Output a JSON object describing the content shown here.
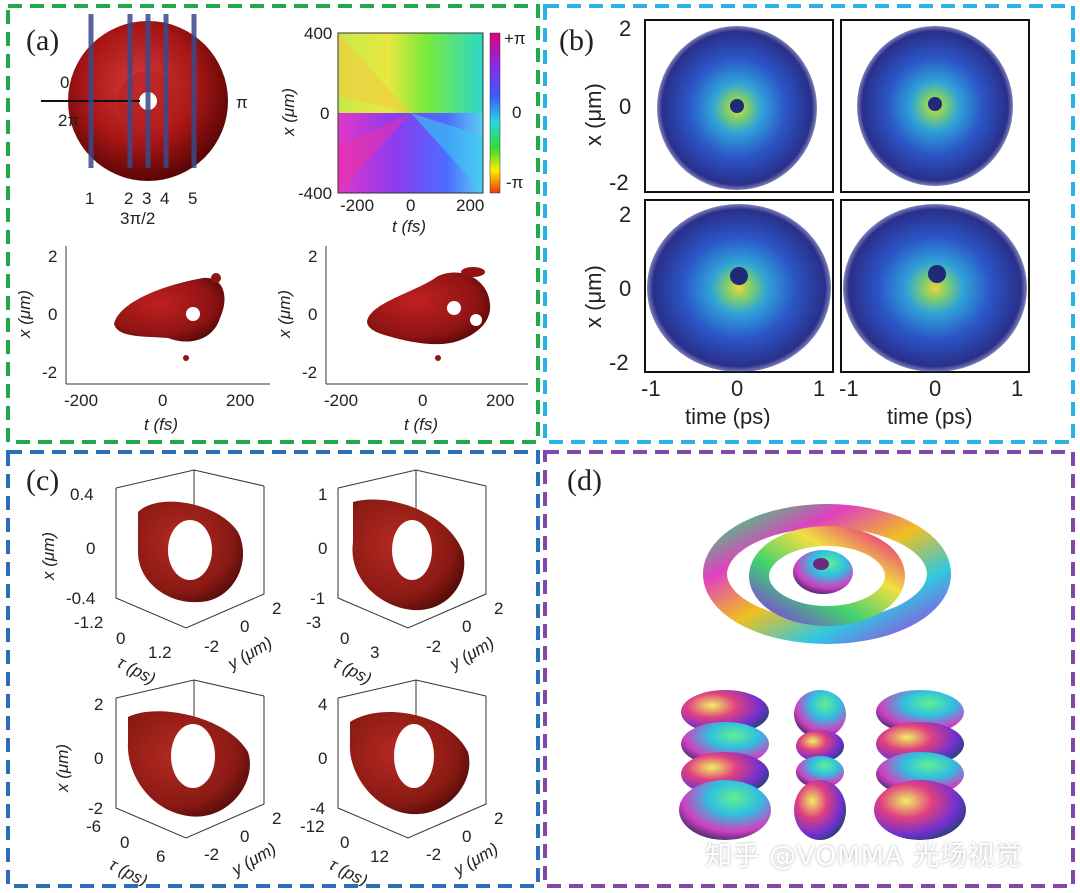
{
  "colors": {
    "panel_a": "#22aa4a",
    "panel_b": "#2ab1e6",
    "panel_c": "#2a6fb7",
    "panel_d": "#8248a8",
    "surface": "#8f1414",
    "field_dark": "#2a2f8a"
  },
  "panel_a": {
    "label": "(a)",
    "torus": {
      "phase_left_top": "0",
      "phase_left_bottom": "2π",
      "phase_right": "π",
      "phase_bottom": "3π/2",
      "slices": [
        "1",
        "2",
        "3",
        "4",
        "5"
      ]
    },
    "phase_map": {
      "ylabel": "x (μm)",
      "xlabel": "t (fs)",
      "yticks": [
        "400",
        "0",
        "-400"
      ],
      "xticks": [
        "-200",
        "0",
        "200"
      ],
      "colorbar_ticks": [
        "+π",
        "0",
        "-π"
      ]
    },
    "iso_left": {
      "ylabel": "x (μm)",
      "xlabel": "t (fs)",
      "yticks": [
        "2",
        "0",
        "-2"
      ],
      "xticks": [
        "-200",
        "0",
        "200"
      ]
    },
    "iso_right": {
      "ylabel": "x (μm)",
      "xlabel": "t (fs)",
      "yticks": [
        "2",
        "0",
        "-2"
      ],
      "xticks": [
        "-200",
        "0",
        "200"
      ]
    }
  },
  "panel_b": {
    "label": "(b)",
    "ylabel": "x (μm)",
    "xlabel": "time (ps)",
    "yticks": [
      "2",
      "0",
      "-2"
    ],
    "xticks": [
      "-1",
      "0",
      "1"
    ]
  },
  "panel_c": {
    "label": "(c)",
    "plots": [
      {
        "xlabel": "x (μm)",
        "zticks": [
          "0.4",
          "0",
          "-0.4"
        ],
        "tau_label": "τ (ps)",
        "tau_ticks": [
          "-1.2",
          "0",
          "1.2"
        ],
        "y_label": "y (μm)",
        "y_ticks": [
          "-2",
          "0",
          "2"
        ]
      },
      {
        "xlabel": "",
        "zticks": [
          "1",
          "0",
          "-1"
        ],
        "tau_label": "τ (ps)",
        "tau_ticks": [
          "-3",
          "0",
          "3"
        ],
        "y_label": "y (μm)",
        "y_ticks": [
          "-2",
          "0",
          "2"
        ]
      },
      {
        "xlabel": "x (μm)",
        "zticks": [
          "2",
          "0",
          "-2"
        ],
        "tau_label": "τ (ps)",
        "tau_ticks": [
          "-6",
          "0",
          "6"
        ],
        "y_label": "y (μm)",
        "y_ticks": [
          "-2",
          "0",
          "2"
        ]
      },
      {
        "xlabel": "",
        "zticks": [
          "4",
          "0",
          "-4"
        ],
        "tau_label": "τ (ps)",
        "tau_ticks": [
          "-12",
          "0",
          "12"
        ],
        "y_label": "y (μm)",
        "y_ticks": [
          "-2",
          "0",
          "2"
        ]
      }
    ]
  },
  "panel_d": {
    "label": "(d)"
  },
  "watermark": "知乎 @VOMMA 光场视觉"
}
